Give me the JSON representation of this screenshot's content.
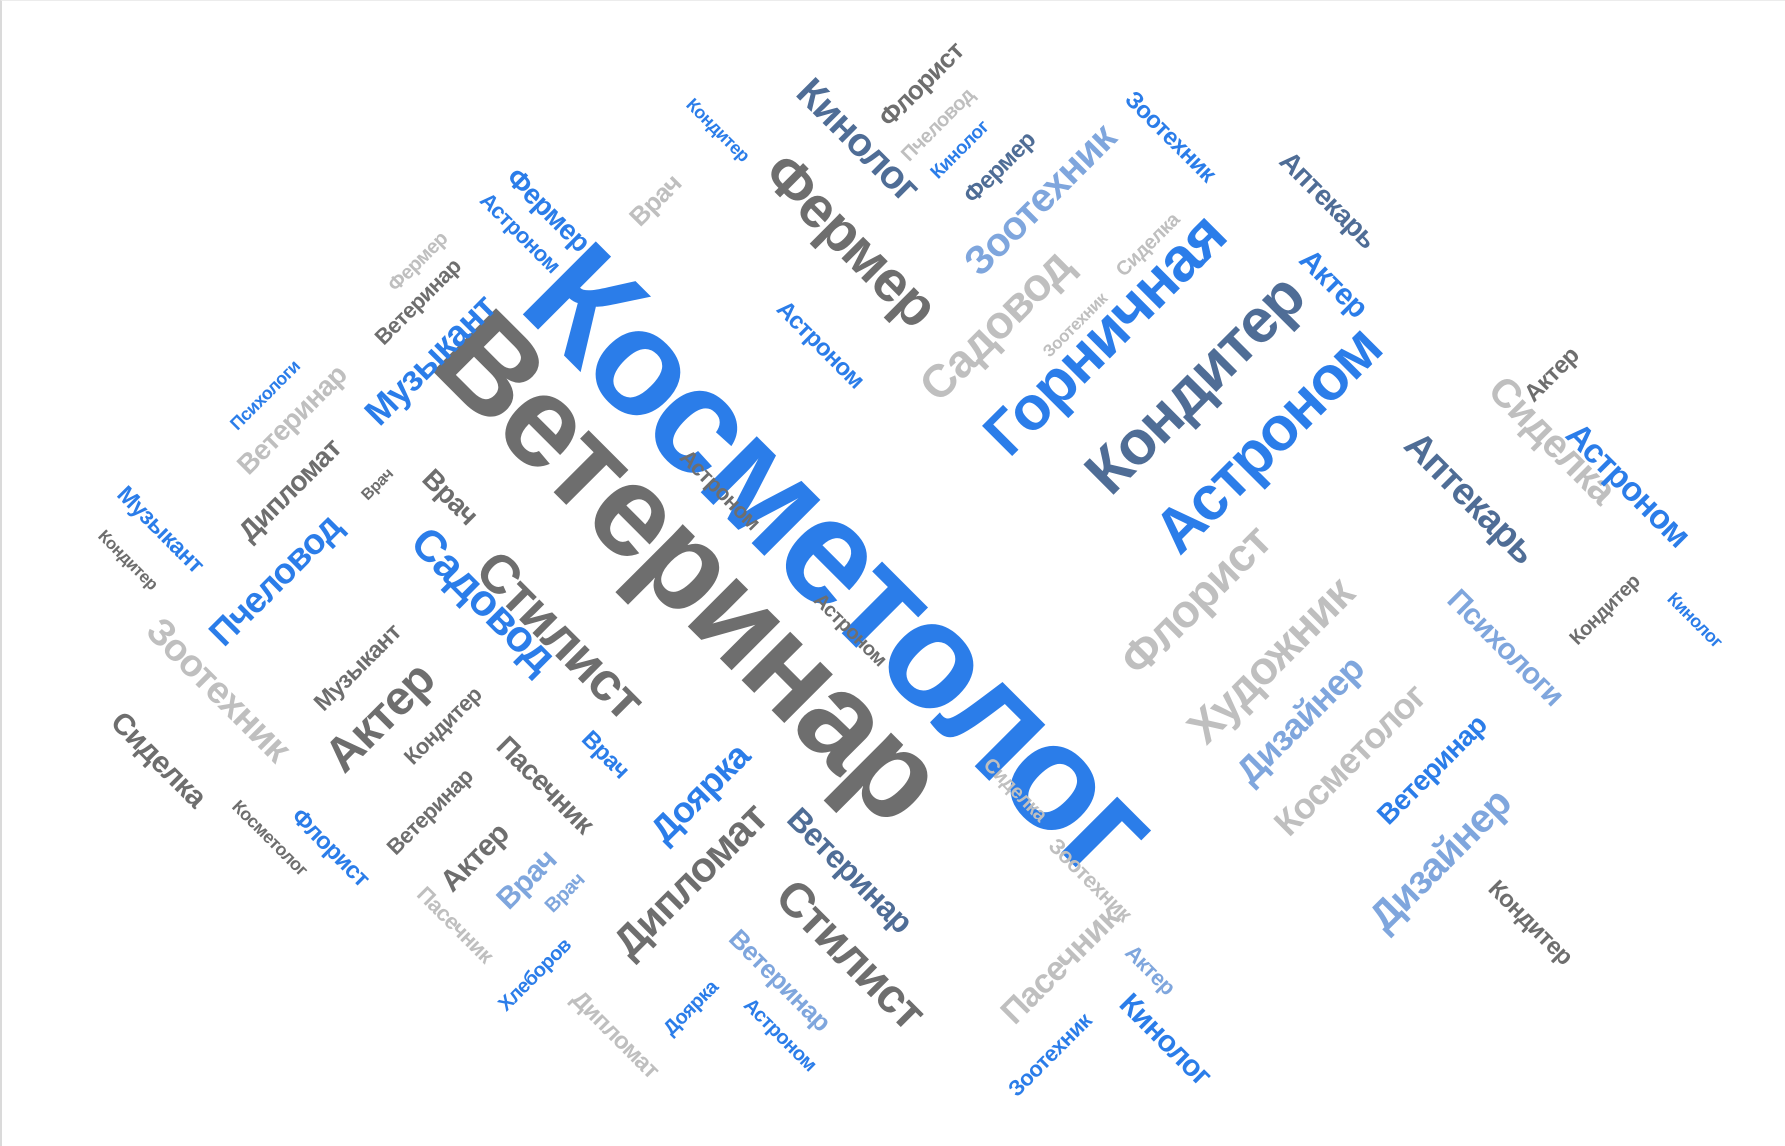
{
  "palette": {
    "blue": "#2b7de9",
    "dark_gray": "#6e6e6e",
    "light_gray": "#bfbfbf",
    "slate": "#4f6d96",
    "pale_blue": "#7fa6dd"
  },
  "words": [
    {
      "text": "Косметолог",
      "color": "blue"
    },
    {
      "text": "Ветеринар",
      "color": "dark_gray"
    },
    {
      "text": "Горничная",
      "color": "blue"
    },
    {
      "text": "Кондитер",
      "color": "slate"
    },
    {
      "text": "Астроном",
      "color": "blue"
    },
    {
      "text": "Фермер",
      "color": "dark_gray"
    },
    {
      "text": "Кинолог",
      "color": "slate"
    },
    {
      "text": "Флорист",
      "color": "dark_gray"
    },
    {
      "text": "Пчеловод",
      "color": "light_gray"
    },
    {
      "text": "Кинолог",
      "color": "blue"
    },
    {
      "text": "Фермер",
      "color": "slate"
    },
    {
      "text": "Зоотехник",
      "color": "pale_blue"
    },
    {
      "text": "Зоотехник",
      "color": "blue"
    },
    {
      "text": "Аптекарь",
      "color": "slate"
    },
    {
      "text": "Актер",
      "color": "blue"
    },
    {
      "text": "Сиделка",
      "color": "light_gray"
    },
    {
      "text": "Садовод",
      "color": "light_gray"
    },
    {
      "text": "Зоотехник",
      "color": "light_gray"
    },
    {
      "text": "Кондитер",
      "color": "blue"
    },
    {
      "text": "Врач",
      "color": "light_gray"
    },
    {
      "text": "Фермер",
      "color": "blue"
    },
    {
      "text": "Астроном",
      "color": "blue"
    },
    {
      "text": "Фермер",
      "color": "light_gray"
    },
    {
      "text": "Ветеринар",
      "color": "dark_gray"
    },
    {
      "text": "Музыкант",
      "color": "blue"
    },
    {
      "text": "Астроном",
      "color": "blue"
    },
    {
      "text": "Психологи",
      "color": "blue"
    },
    {
      "text": "Ветеринар",
      "color": "light_gray"
    },
    {
      "text": "Дипломат",
      "color": "dark_gray"
    },
    {
      "text": "Врач",
      "color": "dark_gray"
    },
    {
      "text": "Врач",
      "color": "dark_gray"
    },
    {
      "text": "Музыкант",
      "color": "blue"
    },
    {
      "text": "Кондитер",
      "color": "dark_gray"
    },
    {
      "text": "Пчеловод",
      "color": "blue"
    },
    {
      "text": "Садовод",
      "color": "blue"
    },
    {
      "text": "Стилист",
      "color": "dark_gray"
    },
    {
      "text": "Астроном",
      "color": "dark_gray"
    },
    {
      "text": "Астроном",
      "color": "dark_gray"
    },
    {
      "text": "Зоотехник",
      "color": "light_gray"
    },
    {
      "text": "Музыкант",
      "color": "dark_gray"
    },
    {
      "text": "Актер",
      "color": "dark_gray"
    },
    {
      "text": "Кондитер",
      "color": "dark_gray"
    },
    {
      "text": "Сиделка",
      "color": "dark_gray"
    },
    {
      "text": "Косметолог",
      "color": "dark_gray"
    },
    {
      "text": "Флорист",
      "color": "blue"
    },
    {
      "text": "Ветеринар",
      "color": "dark_gray"
    },
    {
      "text": "Пасечник",
      "color": "dark_gray"
    },
    {
      "text": "Врач",
      "color": "blue"
    },
    {
      "text": "Доярка",
      "color": "blue"
    },
    {
      "text": "Актер",
      "color": "dark_gray"
    },
    {
      "text": "Пасечник",
      "color": "light_gray"
    },
    {
      "text": "Врач",
      "color": "pale_blue"
    },
    {
      "text": "Врач",
      "color": "pale_blue"
    },
    {
      "text": "Хлеборов",
      "color": "blue"
    },
    {
      "text": "Дипломат",
      "color": "light_gray"
    },
    {
      "text": "Дипломат",
      "color": "dark_gray"
    },
    {
      "text": "Ветеринар",
      "color": "slate"
    },
    {
      "text": "Стилист",
      "color": "dark_gray"
    },
    {
      "text": "Ветеринар",
      "color": "pale_blue"
    },
    {
      "text": "Доярка",
      "color": "blue"
    },
    {
      "text": "Астроном",
      "color": "blue"
    },
    {
      "text": "Сиделка",
      "color": "light_gray"
    },
    {
      "text": "Пасечник",
      "color": "light_gray"
    },
    {
      "text": "Зоотехник",
      "color": "blue"
    },
    {
      "text": "Актер",
      "color": "pale_blue"
    },
    {
      "text": "Кинолог",
      "color": "blue"
    },
    {
      "text": "Флорист",
      "color": "light_gray"
    },
    {
      "text": "Художник",
      "color": "light_gray"
    },
    {
      "text": "Дизайнер",
      "color": "pale_blue"
    },
    {
      "text": "Косметолог",
      "color": "light_gray"
    },
    {
      "text": "Ветеринар",
      "color": "blue"
    },
    {
      "text": "Дизайнер",
      "color": "pale_blue"
    },
    {
      "text": "Психологи",
      "color": "pale_blue"
    },
    {
      "text": "Аптекарь",
      "color": "slate"
    },
    {
      "text": "Сиделка",
      "color": "light_gray"
    },
    {
      "text": "Актер",
      "color": "dark_gray"
    },
    {
      "text": "Астроном",
      "color": "blue"
    },
    {
      "text": "Кондитер",
      "color": "dark_gray"
    },
    {
      "text": "Кинолог",
      "color": "blue"
    },
    {
      "text": "Кондитер",
      "color": "dark_gray"
    },
    {
      "text": "Зоотехник",
      "color": "light_gray"
    },
    {
      "text": "Сиделка",
      "color": "light_gray"
    }
  ]
}
